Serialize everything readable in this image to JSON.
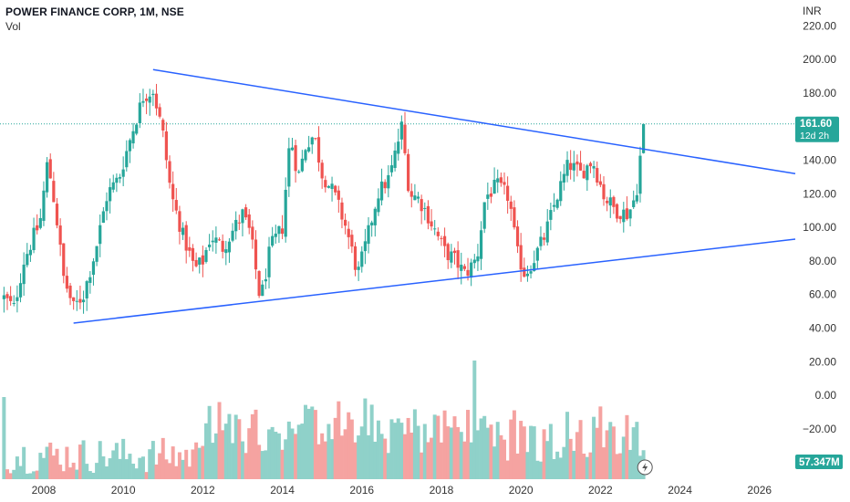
{
  "header": {
    "title": "POWER FINANCE CORP, 1M, NSE",
    "subtitle": "Vol"
  },
  "currency": "INR",
  "price_badge": {
    "value": "161.60",
    "countdown": "12d 2h",
    "color": "#26a69a"
  },
  "volume_badge": {
    "value": "57.347M",
    "color": "#26a69a"
  },
  "colors": {
    "up": "#26a69a",
    "down": "#ef5350",
    "vol_up": "#8fd1c9",
    "vol_down": "#f5a3a1",
    "trendline": "#2962ff",
    "price_line": "#26a69a"
  },
  "icons": {
    "volume_marker": "lightning-icon"
  },
  "chart_data": {
    "type": "candlestick",
    "title": "POWER FINANCE CORP, 1M, NSE",
    "y_axis": {
      "label": "INR",
      "ticks": [
        "220.00",
        "200.00",
        "180.00",
        "160.00",
        "140.00",
        "120.00",
        "100.00",
        "80.00",
        "60.00",
        "40.00",
        "20.00",
        "0.00",
        "−20.00",
        "−40.00"
      ],
      "range": [
        -50,
        230
      ]
    },
    "x_axis": {
      "ticks": [
        "2008",
        "2010",
        "2012",
        "2014",
        "2016",
        "2018",
        "2020",
        "2022",
        "2024",
        "2026"
      ],
      "range": [
        2006.9,
        2026.9
      ]
    },
    "last_price": 161.6,
    "trendlines": [
      {
        "name": "upper",
        "from": [
          2010.75,
          194
        ],
        "to": [
          2026.9,
          132
        ]
      },
      {
        "name": "lower",
        "from": [
          2008.75,
          43
        ],
        "to": [
          2026.9,
          93
        ]
      }
    ],
    "close_series": {
      "x": [
        2007.0,
        2007.25,
        2007.5,
        2007.75,
        2007.9,
        2008.1,
        2008.3,
        2008.5,
        2008.75,
        2009.0,
        2009.3,
        2009.6,
        2009.9,
        2010.2,
        2010.5,
        2010.75,
        2011.0,
        2011.2,
        2011.5,
        2011.8,
        2012.0,
        2012.2,
        2012.5,
        2012.8,
        2013.0,
        2013.2,
        2013.45,
        2013.7,
        2014.0,
        2014.2,
        2014.4,
        2014.6,
        2014.8,
        2015.0,
        2015.3,
        2015.6,
        2015.9,
        2016.1,
        2016.4,
        2016.7,
        2017.0,
        2017.2,
        2017.4,
        2017.6,
        2017.9,
        2018.1,
        2018.3,
        2018.6,
        2018.9,
        2019.1,
        2019.4,
        2019.7,
        2019.9,
        2020.1,
        2020.3,
        2020.6,
        2020.9,
        2021.2,
        2021.5,
        2021.8,
        2022.1,
        2022.4,
        2022.7,
        2022.9,
        2023.0,
        2023.15
      ],
      "y": [
        58,
        52,
        80,
        95,
        102,
        140,
        110,
        70,
        52,
        60,
        86,
        120,
        130,
        155,
        178,
        182,
        155,
        120,
        95,
        75,
        80,
        95,
        88,
        100,
        108,
        96,
        56,
        88,
        100,
        155,
        130,
        150,
        155,
        132,
        120,
        100,
        72,
        90,
        120,
        130,
        160,
        120,
        118,
        110,
        95,
        85,
        82,
        72,
        82,
        118,
        125,
        118,
        85,
        72,
        80,
        95,
        118,
        138,
        132,
        140,
        118,
        110,
        108,
        120,
        142,
        161.6
      ]
    },
    "volume_series": {
      "unit": "M",
      "last_value": 57.347
    }
  }
}
